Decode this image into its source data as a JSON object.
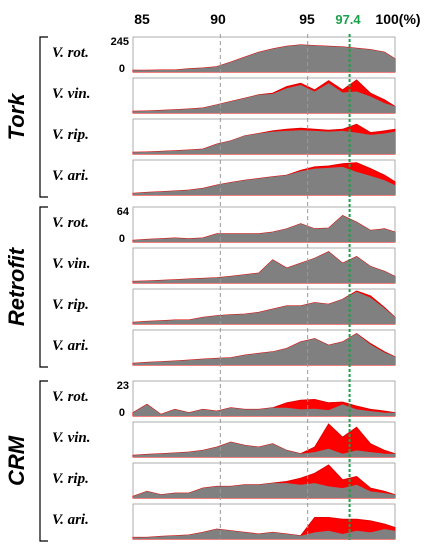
{
  "chart_data": {
    "type": "area",
    "x_ticks": [
      {
        "value": 85,
        "label": "85"
      },
      {
        "value": 90,
        "label": "90"
      },
      {
        "value": 95,
        "label": "95"
      },
      {
        "value": 97.4,
        "label": "97.4"
      },
      {
        "value": 100,
        "label": "100(%)"
      }
    ],
    "x_range": [
      85,
      100
    ],
    "highlight_x": 97.4,
    "highlight_color": "#1aa14a",
    "x": [
      85,
      85.8,
      86.6,
      87.4,
      88.2,
      89,
      89.8,
      90.6,
      91.4,
      92.2,
      93,
      93.8,
      94.6,
      95.4,
      96.2,
      97,
      97.8,
      98.6,
      99.4,
      100
    ],
    "colors": {
      "top": "#808080",
      "bottom": "#ff0000",
      "line": "#e00000"
    },
    "groups": [
      {
        "name": "Tork",
        "scale_max": "245",
        "scale_min": "0",
        "panels": [
          {
            "species": "V. rot.",
            "top": [
              5,
              5,
              6,
              6,
              10,
              12,
              16,
              30,
              45,
              60,
              70,
              78,
              82,
              80,
              78,
              76,
              72,
              68,
              60,
              40
            ],
            "bottom": [
              5,
              5,
              6,
              6,
              10,
              12,
              16,
              30,
              45,
              60,
              70,
              78,
              82,
              80,
              78,
              76,
              72,
              68,
              60,
              40
            ]
          },
          {
            "species": "V. vin.",
            "top": [
              5,
              6,
              8,
              10,
              12,
              15,
              25,
              35,
              45,
              55,
              60,
              80,
              90,
              70,
              98,
              70,
              100,
              60,
              40,
              20
            ],
            "bottom": [
              5,
              6,
              8,
              10,
              12,
              15,
              25,
              35,
              45,
              55,
              58,
              75,
              85,
              65,
              90,
              62,
              65,
              50,
              30,
              20
            ]
          },
          {
            "species": "V. rip.",
            "top": [
              5,
              6,
              8,
              10,
              12,
              15,
              30,
              40,
              55,
              62,
              70,
              75,
              78,
              75,
              72,
              75,
              90,
              65,
              70,
              75
            ],
            "bottom": [
              5,
              6,
              8,
              10,
              12,
              15,
              30,
              40,
              55,
              62,
              68,
              70,
              72,
              70,
              68,
              70,
              65,
              58,
              62,
              68
            ]
          },
          {
            "species": "V. ari.",
            "top": [
              5,
              8,
              10,
              12,
              15,
              20,
              30,
              38,
              45,
              50,
              55,
              60,
              75,
              85,
              88,
              95,
              98,
              80,
              60,
              40
            ],
            "bottom": [
              5,
              8,
              10,
              12,
              15,
              20,
              30,
              38,
              45,
              50,
              55,
              60,
              72,
              80,
              82,
              85,
              70,
              58,
              45,
              30
            ]
          }
        ]
      },
      {
        "name": "Retrofit",
        "scale_max": "64",
        "scale_min": "0",
        "panels": [
          {
            "species": "V. rot.",
            "top": [
              5,
              8,
              10,
              12,
              10,
              12,
              25,
              25,
              25,
              25,
              30,
              40,
              55,
              40,
              42,
              80,
              60,
              35,
              40,
              30
            ],
            "bottom": [
              5,
              8,
              10,
              12,
              10,
              12,
              25,
              25,
              25,
              25,
              30,
              40,
              55,
              40,
              42,
              80,
              60,
              35,
              40,
              30
            ]
          },
          {
            "species": "V. vin.",
            "top": [
              5,
              6,
              8,
              10,
              12,
              14,
              16,
              20,
              25,
              30,
              70,
              45,
              60,
              75,
              95,
              60,
              80,
              50,
              35,
              20
            ],
            "bottom": [
              5,
              6,
              8,
              10,
              12,
              14,
              16,
              20,
              25,
              30,
              70,
              45,
              60,
              75,
              95,
              60,
              80,
              50,
              35,
              20
            ]
          },
          {
            "species": "V. rip.",
            "top": [
              5,
              8,
              10,
              12,
              12,
              20,
              25,
              28,
              30,
              35,
              45,
              55,
              55,
              65,
              60,
              75,
              100,
              85,
              50,
              20
            ],
            "bottom": [
              5,
              8,
              10,
              12,
              12,
              20,
              25,
              28,
              30,
              35,
              45,
              55,
              55,
              65,
              60,
              75,
              98,
              80,
              48,
              20
            ]
          },
          {
            "species": "V. ari.",
            "top": [
              5,
              8,
              10,
              12,
              15,
              18,
              20,
              22,
              30,
              35,
              40,
              50,
              70,
              80,
              60,
              70,
              95,
              65,
              40,
              25
            ],
            "bottom": [
              5,
              8,
              10,
              12,
              15,
              18,
              20,
              22,
              30,
              35,
              40,
              50,
              70,
              80,
              60,
              70,
              95,
              62,
              38,
              25
            ]
          }
        ]
      },
      {
        "name": "CRM",
        "scale_max": "23",
        "scale_min": "0",
        "panels": [
          {
            "species": "V. rot.",
            "top": [
              10,
              35,
              5,
              20,
              10,
              20,
              15,
              25,
              20,
              20,
              25,
              40,
              48,
              50,
              40,
              42,
              30,
              20,
              15,
              10
            ],
            "bottom": [
              10,
              35,
              5,
              20,
              10,
              20,
              15,
              25,
              20,
              20,
              25,
              25,
              20,
              22,
              18,
              35,
              20,
              15,
              10,
              10
            ]
          },
          {
            "species": "V. vin.",
            "top": [
              5,
              8,
              10,
              12,
              15,
              20,
              30,
              45,
              35,
              30,
              40,
              20,
              10,
              30,
              100,
              60,
              90,
              40,
              20,
              10
            ],
            "bottom": [
              5,
              8,
              10,
              12,
              15,
              20,
              30,
              45,
              35,
              30,
              40,
              20,
              10,
              15,
              25,
              10,
              20,
              15,
              10,
              10
            ]
          },
          {
            "species": "V. rip.",
            "top": [
              5,
              20,
              10,
              15,
              15,
              30,
              35,
              35,
              40,
              40,
              45,
              50,
              60,
              75,
              100,
              55,
              65,
              30,
              20,
              10
            ],
            "bottom": [
              5,
              20,
              10,
              15,
              15,
              30,
              35,
              35,
              40,
              40,
              45,
              45,
              40,
              45,
              35,
              30,
              40,
              20,
              15,
              10
            ]
          },
          {
            "species": "V. ari.",
            "top": [
              5,
              5,
              8,
              10,
              12,
              20,
              30,
              25,
              20,
              15,
              20,
              15,
              10,
              65,
              65,
              60,
              60,
              55,
              45,
              35
            ],
            "bottom": [
              5,
              5,
              8,
              10,
              12,
              20,
              30,
              25,
              20,
              15,
              20,
              15,
              10,
              20,
              25,
              15,
              25,
              20,
              30,
              25
            ]
          }
        ]
      }
    ]
  }
}
